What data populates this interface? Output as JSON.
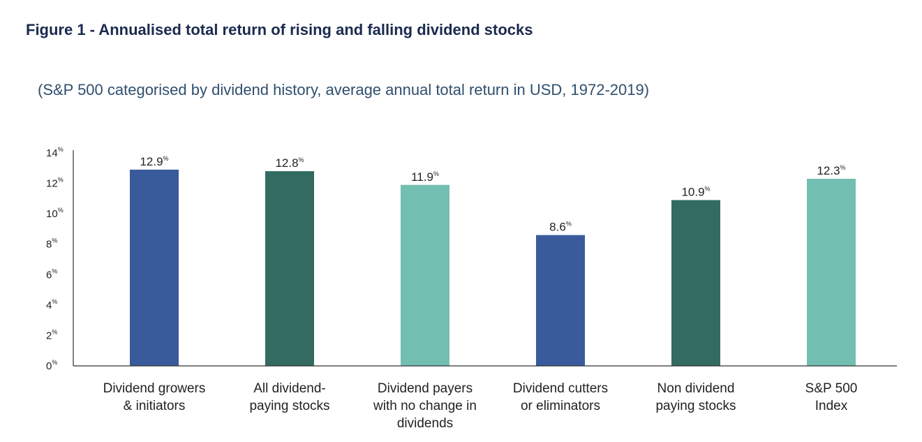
{
  "chart_data": {
    "type": "bar",
    "title": "Figure 1 - Annualised total return of rising and falling dividend stocks",
    "subtitle": "(S&P 500 categorised by dividend history, average annual total return in USD, 1972-2019)",
    "categories": [
      [
        "Dividend growers",
        "& initiators"
      ],
      [
        "All dividend-",
        "paying stocks"
      ],
      [
        "Dividend payers",
        "with no change in",
        "dividends"
      ],
      [
        "Dividend cutters",
        "or eliminators"
      ],
      [
        "Non dividend",
        "paying stocks"
      ],
      [
        "S&P 500",
        "Index"
      ]
    ],
    "values": [
      12.9,
      12.8,
      11.9,
      8.6,
      10.9,
      12.3
    ],
    "value_labels": [
      "12.9",
      "12.8",
      "11.9",
      "8.6",
      "10.9",
      "12.3"
    ],
    "value_suffix": "%",
    "bar_colors": [
      "#3a5b9b",
      "#336b62",
      "#72bfb2",
      "#3a5b9b",
      "#336b62",
      "#72bfb2"
    ],
    "y_ticks": [
      0,
      2,
      4,
      6,
      8,
      10,
      12,
      14
    ],
    "y_tick_labels": [
      "0",
      "2",
      "4",
      "6",
      "8",
      "10",
      "12",
      "14"
    ],
    "y_tick_suffix": "%",
    "ylim": [
      0,
      14
    ],
    "xlabel": "",
    "ylabel": "",
    "grid": false,
    "legend": "none"
  }
}
